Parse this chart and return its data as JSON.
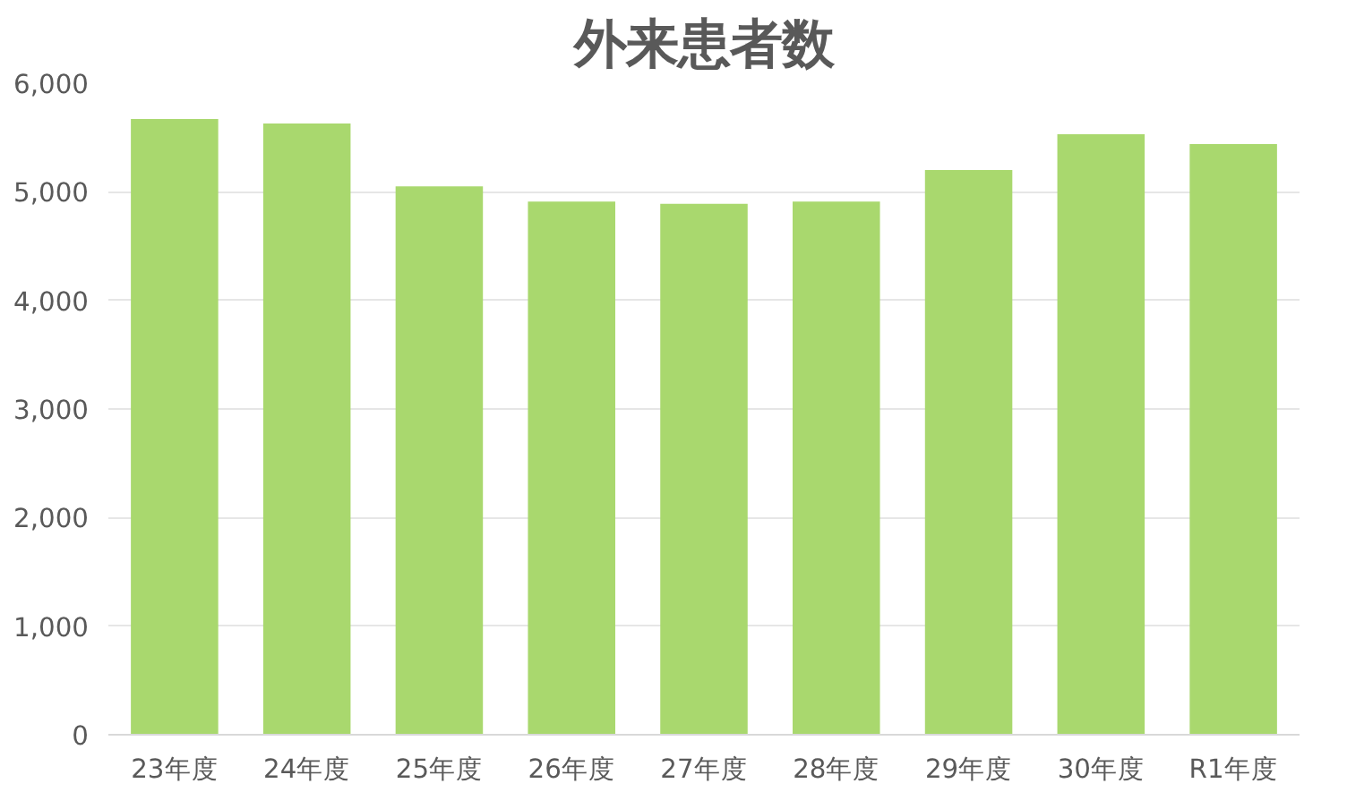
{
  "chart_data": {
    "type": "bar",
    "title": "外来患者数",
    "categories": [
      "23年度",
      "24年度",
      "25年度",
      "26年度",
      "27年度",
      "28年度",
      "29年度",
      "30年度",
      "R1年度"
    ],
    "values": [
      5670,
      5630,
      5050,
      4910,
      4890,
      4910,
      5200,
      5530,
      5440
    ],
    "color": "#a9d86e",
    "ylim": [
      0,
      6000
    ],
    "yticks": [
      {
        "value": 0,
        "label": "0"
      },
      {
        "value": 1000,
        "label": "1,000"
      },
      {
        "value": 2000,
        "label": "2,000"
      },
      {
        "value": 3000,
        "label": "3,000"
      },
      {
        "value": 4000,
        "label": "4,000"
      },
      {
        "value": 5000,
        "label": "5,000"
      },
      {
        "value": 6000,
        "label": "6,000"
      }
    ],
    "grid": "y"
  }
}
